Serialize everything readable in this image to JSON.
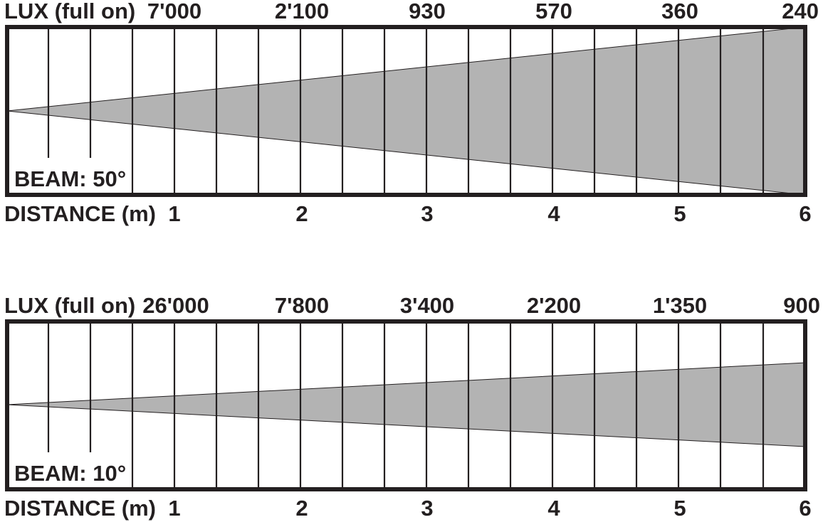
{
  "panels": [
    {
      "lux_label": "LUX (full on)",
      "lux_values": [
        "7'000",
        "2'100",
        "930",
        "570",
        "360",
        "240"
      ],
      "beam_label": "BEAM: 50°",
      "beam_angle_deg": 50,
      "distance_label": "DISTANCE (m)",
      "distance_values": [
        "1",
        "2",
        "3",
        "4",
        "5",
        "6"
      ]
    },
    {
      "lux_label": "LUX (full on)",
      "lux_values": [
        "26'000",
        "7'800",
        "3'400",
        "2'200",
        "1'350",
        "900"
      ],
      "beam_label": "BEAM: 10°",
      "beam_angle_deg": 10,
      "distance_label": "DISTANCE (m)",
      "distance_values": [
        "1",
        "2",
        "3",
        "4",
        "5",
        "6"
      ]
    }
  ]
}
